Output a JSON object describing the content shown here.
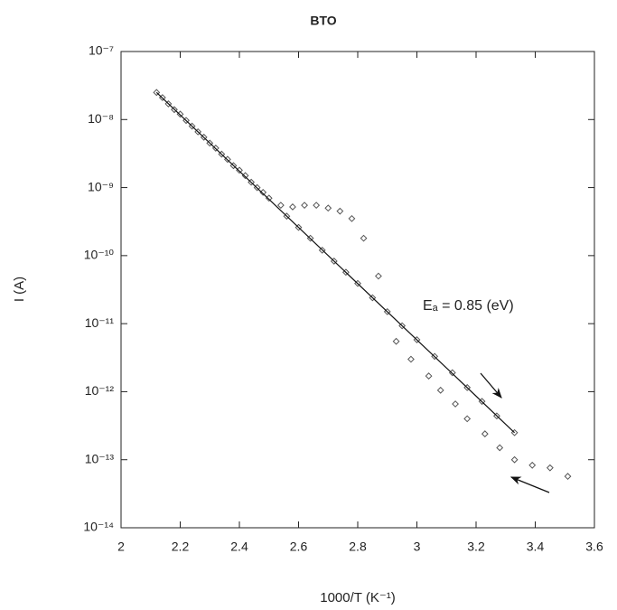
{
  "chart_data": {
    "type": "scatter",
    "title": "BTO",
    "x_label": "1000/T (K⁻¹)",
    "y_label": "I (A)",
    "annotation": "Eₐ = 0.85 (eV)",
    "yscale": "log",
    "xlim": [
      2,
      3.6
    ],
    "ylim": [
      1e-14,
      1e-07
    ],
    "xticks": [
      2,
      2.2,
      2.4,
      2.6,
      2.8,
      3,
      3.2,
      3.4,
      3.6
    ],
    "yticks": [
      {
        "value": 1e-14,
        "label": "10⁻¹⁴"
      },
      {
        "value": 1e-13,
        "label": "10⁻¹³"
      },
      {
        "value": 1e-12,
        "label": "10⁻¹²"
      },
      {
        "value": 1e-11,
        "label": "10⁻¹¹"
      },
      {
        "value": 1e-10,
        "label": "10⁻¹⁰"
      },
      {
        "value": 1e-09,
        "label": "10⁻⁹"
      },
      {
        "value": 1e-08,
        "label": "10⁻⁸"
      },
      {
        "value": 1e-07,
        "label": "10⁻⁷"
      }
    ],
    "series": [
      {
        "color": "#555555",
        "marker": "diamond",
        "x": [
          2.12,
          2.14,
          2.16,
          2.18,
          2.2,
          2.22,
          2.24,
          2.26,
          2.28,
          2.3,
          2.32,
          2.34,
          2.36,
          2.38,
          2.4,
          2.42,
          2.44,
          2.46,
          2.48,
          2.5,
          2.54,
          2.58,
          2.62,
          2.66,
          2.7,
          2.74,
          2.78,
          2.82,
          2.87,
          2.93,
          2.98,
          3.04,
          3.08,
          3.13,
          3.17,
          3.23,
          3.28,
          3.33,
          3.39,
          3.45,
          3.51,
          2.56,
          2.6,
          2.64,
          2.68,
          2.72,
          2.76,
          2.8,
          2.85,
          2.9,
          2.95,
          3,
          3.06,
          3.12,
          3.17,
          3.22,
          3.27,
          3.33
        ],
        "values": [
          2.5e-08,
          2.1e-08,
          1.7e-08,
          1.4e-08,
          1.2e-08,
          9.7e-09,
          8e-09,
          6.6e-09,
          5.5e-09,
          4.5e-09,
          3.8e-09,
          3.1e-09,
          2.6e-09,
          2.1e-09,
          1.8e-09,
          1.5e-09,
          1.2e-09,
          1e-09,
          8.5e-10,
          7e-10,
          5.5e-10,
          5.2e-10,
          5.5e-10,
          5.5e-10,
          5e-10,
          4.5e-10,
          3.5e-10,
          1.8e-10,
          5e-11,
          5.5e-12,
          3e-12,
          1.7e-12,
          1.05e-12,
          6.6e-13,
          4e-13,
          2.4e-13,
          1.5e-13,
          1e-13,
          8.3e-14,
          7.6e-14,
          5.7e-14,
          3.8e-10,
          2.6e-10,
          1.8e-10,
          1.2e-10,
          8.3e-11,
          5.7e-11,
          3.9e-11,
          2.4e-11,
          1.5e-11,
          9.3e-12,
          5.8e-12,
          3.3e-12,
          1.9e-12,
          1.15e-12,
          7.2e-13,
          4.4e-13,
          2.5e-13
        ]
      },
      {
        "type": "line",
        "color": "#111111",
        "x": [
          2.12,
          3.33
        ],
        "values": [
          2.5e-08,
          2.5e-13
        ]
      }
    ]
  }
}
